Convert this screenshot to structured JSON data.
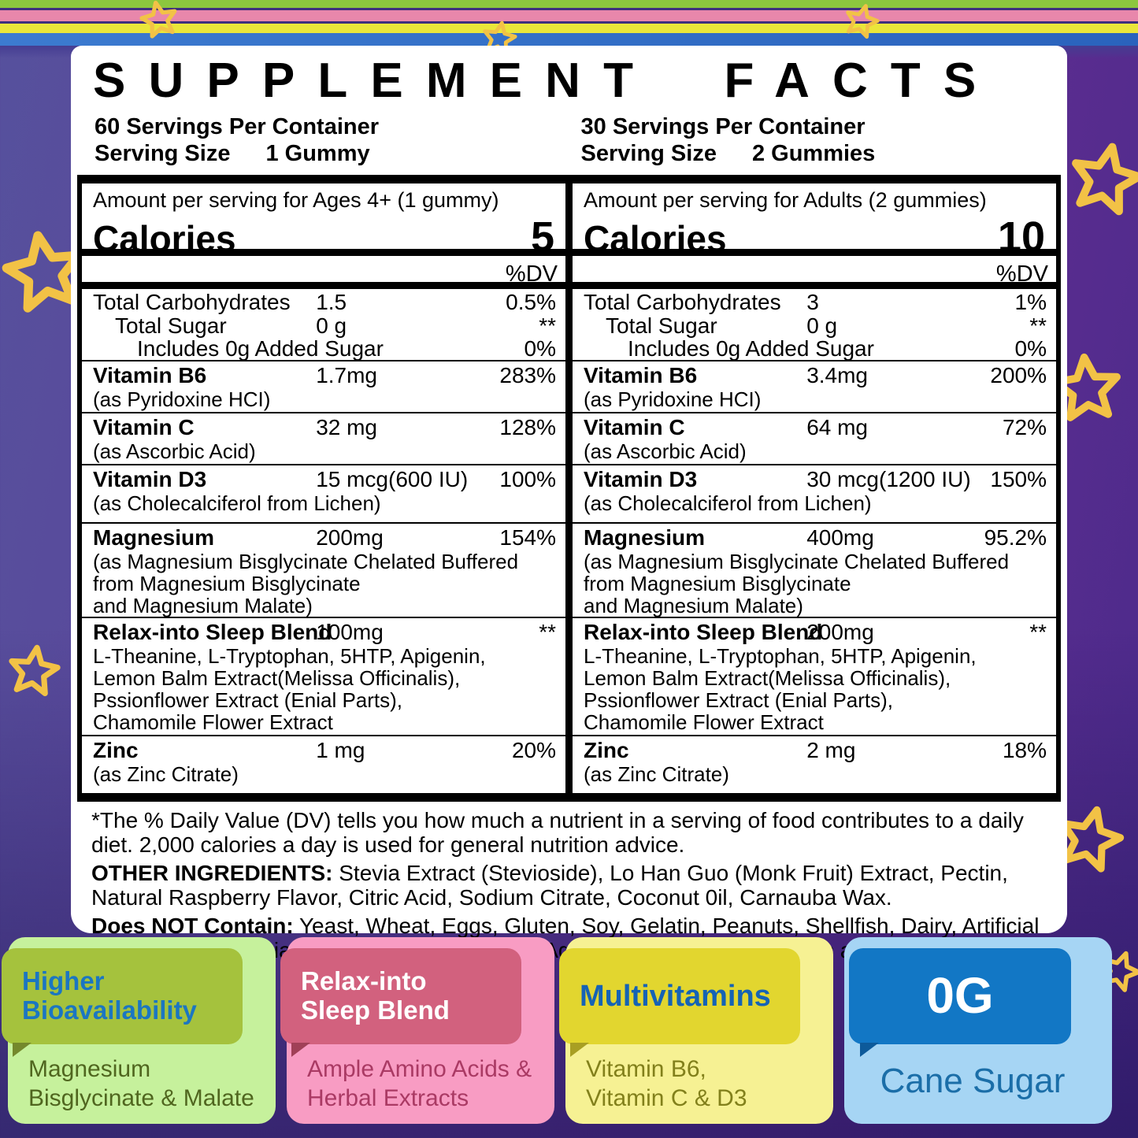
{
  "colors": {
    "background_left": "#56519d",
    "background_right": "#5b2d90",
    "background_bottom_right": "#2e2478",
    "stripe_green": "#8cc63e",
    "stripe_pink": "#e887ab",
    "stripe_yellow": "#eae63a",
    "stripe_blue": "#2f6fc2",
    "star_gold": "#f6c63e",
    "panel_bg": "#ffffff",
    "panel_text": "#000000"
  },
  "label": {
    "title": "SUPPLEMENT FACTS",
    "left": {
      "servings": "60 Servings Per Container",
      "serving_size_label": "Serving Size",
      "serving_size_value": "1 Gummy",
      "amount_line": "Amount per serving for Ages 4+ (1 gummy)",
      "calories_label": "Calories",
      "calories_value": "5",
      "dv_header": "%DV",
      "rows": [
        {
          "key": "carbs",
          "lines": [
            {
              "text": "Total Carbohydrates",
              "indent": 0,
              "amount": "1.5",
              "dv": "0.5%"
            },
            {
              "text": "Total Sugar",
              "indent": 1,
              "amount": "0 g",
              "dv": "**"
            },
            {
              "text": "Includes 0g Added Sugar",
              "indent": 2,
              "amount": "",
              "dv": "0%"
            }
          ]
        },
        {
          "key": "b6",
          "name": "Vitamin B6",
          "amount": "1.7mg",
          "dv": "283%",
          "subs": [
            "(as Pyridoxine HCI)"
          ]
        },
        {
          "key": "c",
          "name": "Vitamin C",
          "amount": "32 mg",
          "dv": "128%",
          "subs": [
            "(as Ascorbic Acid)"
          ]
        },
        {
          "key": "d3",
          "name": "Vitamin D3",
          "amount": "15 mcg(600 IU)",
          "dv": "100%",
          "subs": [
            "(as Cholecalciferol from Lichen)"
          ]
        },
        {
          "key": "mg",
          "name": "Magnesium",
          "amount": "200mg",
          "dv": "154%",
          "subs": [
            "(as Magnesium Bisglycinate Chelated Buffered",
            "from Magnesium Bisglycinate",
            "and Magnesium Malate)"
          ]
        },
        {
          "key": "blend",
          "name": "Relax-into Sleep Blend",
          "amount": "100mg",
          "dv": "**",
          "subs": [
            "L-Theanine, L-Tryptophan, 5HTP, Apigenin,",
            "Lemon Balm Extract(Melissa Officinalis),",
            "Pssionflower Extract (Enial Parts),",
            "Chamomile Flower Extract"
          ]
        },
        {
          "key": "zinc",
          "name": "Zinc",
          "amount": "1 mg",
          "dv": "20%",
          "subs": [
            "(as Zinc Citrate)"
          ]
        }
      ]
    },
    "right": {
      "servings": "30 Servings Per Container",
      "serving_size_label": "Serving Size",
      "serving_size_value": "2 Gummies",
      "amount_line": "Amount per serving for Adults (2 gummies)",
      "calories_label": "Calories",
      "calories_value": "10",
      "dv_header": "%DV",
      "rows": [
        {
          "key": "carbs",
          "lines": [
            {
              "text": "Total Carbohydrates",
              "indent": 0,
              "amount": "3",
              "dv": "1%"
            },
            {
              "text": "Total Sugar",
              "indent": 1,
              "amount": "0 g",
              "dv": "**"
            },
            {
              "text": "Includes 0g Added Sugar",
              "indent": 2,
              "amount": "",
              "dv": "0%"
            }
          ]
        },
        {
          "key": "b6",
          "name": "Vitamin B6",
          "amount": "3.4mg",
          "dv": "200%",
          "subs": [
            "(as Pyridoxine HCI)"
          ]
        },
        {
          "key": "c",
          "name": "Vitamin C",
          "amount": "64 mg",
          "dv": "72%",
          "subs": [
            "(as Ascorbic Acid)"
          ]
        },
        {
          "key": "d3",
          "name": "Vitamin D3",
          "amount": "30 mcg(1200 IU)",
          "dv": "150%",
          "subs": [
            "(as Cholecalciferol from Lichen)"
          ]
        },
        {
          "key": "mg",
          "name": "Magnesium",
          "amount": "400mg",
          "dv": "95.2%",
          "subs": [
            "(as Magnesium Bisglycinate Chelated Buffered",
            "from Magnesium Bisglycinate",
            "and Magnesium Malate)"
          ]
        },
        {
          "key": "blend",
          "name": "Relax-into Sleep Blend",
          "amount": "200mg",
          "dv": "**",
          "subs": [
            "L-Theanine, L-Tryptophan, 5HTP, Apigenin,",
            "Lemon Balm Extract(Melissa Officinalis),",
            "Pssionflower Extract (Enial Parts),",
            "Chamomile Flower Extract"
          ]
        },
        {
          "key": "zinc",
          "name": "Zinc",
          "amount": "2 mg",
          "dv": "18%",
          "subs": [
            "(as Zinc Citrate)"
          ]
        }
      ]
    }
  },
  "footnotes": {
    "dv_note": "*The % Daily Value (DV) tells you how much a nutrient in a serving of food contributes to a daily diet. 2,000 calories a day is used for general nutrition advice.",
    "other_label": "OTHER INGREDIENTS:",
    "other_text": " Stevia Extract (Stevioside), Lo Han Guo (Monk Fruit) Extract, Pectin, Natural Raspberry Flavor, Citric Acid, Sodium Citrate, Coconut 0il, Carnauba Wax.",
    "not_contain_label": "Does NOT Contain:",
    "not_contain_text": " Yeast, Wheat, Eggs, Gluten, Soy, Gelatin, Peanuts, Shellfish, Dairy, Artificial Sweeteners, Artificial Colors, Artificial  Flavors, Agave, Artificial Preservatives and Salicylates."
  },
  "badges": [
    {
      "title_lines": [
        "Higher",
        "Bioavailability"
      ],
      "body_lines": [
        "Magnesium",
        "Bisglycinate & Malate"
      ],
      "outer": "#c6f19c",
      "header_bg": "#a5c23d",
      "title_color": "#1b76c2",
      "body_color": "#50661f"
    },
    {
      "title_lines": [
        "Relax-into",
        "Sleep Blend"
      ],
      "body_lines": [
        "Ample Amino Acids &",
        "Herbal Extracts"
      ],
      "outer": "#f89cc3",
      "header_bg": "#d2617e",
      "title_color": "#ffffff",
      "body_color": "#aa3a64"
    },
    {
      "title_lines": [
        "Multivitamins"
      ],
      "body_lines": [
        "Vitamin B6,",
        "Vitamin C & D3"
      ],
      "outer": "#f6f193",
      "header_bg": "#e2d62f",
      "title_color": "#1563b5",
      "body_color": "#82801b"
    },
    {
      "title_lines": [
        "0G"
      ],
      "body_lines": [
        "Cane Sugar"
      ],
      "outer": "#a6d5f4",
      "header_bg": "#1277c5",
      "title_color": "#ffffff",
      "body_color": "#1b6ea8"
    }
  ]
}
